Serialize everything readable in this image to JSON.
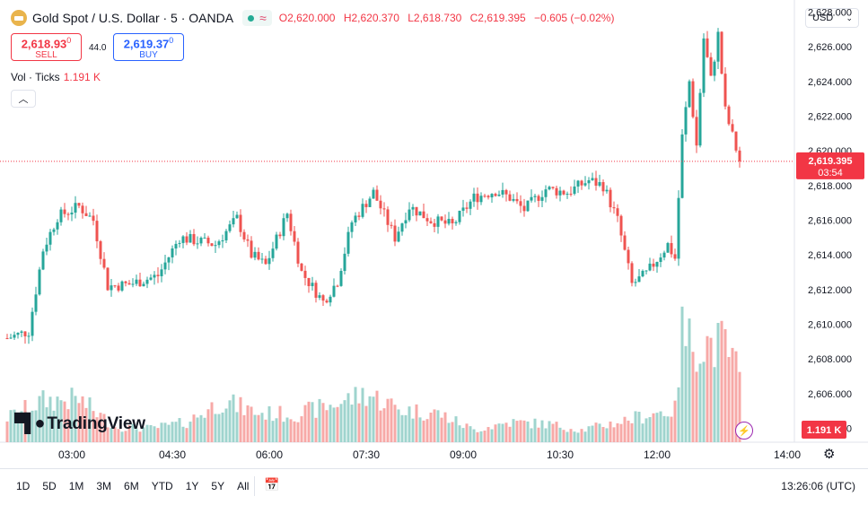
{
  "header": {
    "title": "Gold Spot / U.S. Dollar · 5 · OANDA",
    "open": "O2,620.000",
    "high": "H2,620.370",
    "low": "L2,618.730",
    "close": "C2,619.395",
    "change": "−0.605 (−0.02%)"
  },
  "trade": {
    "sell_price": "2,618.93",
    "sell_price_small": "0",
    "sell_label": "SELL",
    "spread": "44.0",
    "buy_price": "2,619.37",
    "buy_price_small": "0",
    "buy_label": "BUY"
  },
  "volume": {
    "label": "Vol · Ticks",
    "value": "1.191 K"
  },
  "currency": "USD",
  "logo_text": "TradingView",
  "bottom": {
    "ranges": [
      "1D",
      "5D",
      "1M",
      "3M",
      "6M",
      "YTD",
      "1Y",
      "5Y",
      "All"
    ],
    "clock": "13:26:06 (UTC)"
  },
  "colors": {
    "up": "#26a69a",
    "down": "#ef5350",
    "up_vol": "#9fd4ce",
    "down_vol": "#f7a9a7",
    "last_price": "#f23645"
  },
  "icons": {
    "calendar": "calendar-range-icon",
    "settings": "gear-icon",
    "alert": "flash-icon"
  },
  "chart_data": {
    "type": "candlestick",
    "y_ticks": [
      "2,604.000",
      "2,606.000",
      "2,608.000",
      "2,610.000",
      "2,612.000",
      "2,614.000",
      "2,616.000",
      "2,618.000",
      "2,620.000",
      "2,622.000",
      "2,624.000",
      "2,626.000",
      "2,628.000"
    ],
    "x_ticks": [
      "03:00",
      "04:30",
      "06:00",
      "07:30",
      "09:00",
      "10:30",
      "12:00",
      "14:00"
    ],
    "ylim": [
      2603.2,
      2628.7
    ],
    "last_price": {
      "value": 2619.395,
      "label": "2,619.395",
      "countdown": "03:54"
    },
    "last_volume_label": "1.191 K",
    "volume_max": 7.5,
    "anchors": [
      [
        0,
        2609.2
      ],
      [
        6,
        2609.6
      ],
      [
        10,
        2614.3
      ],
      [
        14,
        2616.2
      ],
      [
        20,
        2616.8
      ],
      [
        24,
        2616.0
      ],
      [
        28,
        2612.2
      ],
      [
        34,
        2612.3
      ],
      [
        42,
        2612.8
      ],
      [
        48,
        2615.0
      ],
      [
        58,
        2614.6
      ],
      [
        64,
        2616.1
      ],
      [
        68,
        2614.0
      ],
      [
        72,
        2613.4
      ],
      [
        78,
        2616.4
      ],
      [
        82,
        2613.0
      ],
      [
        88,
        2611.3
      ],
      [
        92,
        2612.5
      ],
      [
        96,
        2615.9
      ],
      [
        102,
        2617.6
      ],
      [
        108,
        2615.0
      ],
      [
        112,
        2616.8
      ],
      [
        118,
        2616.0
      ],
      [
        124,
        2615.7
      ],
      [
        130,
        2617.3
      ],
      [
        136,
        2617.7
      ],
      [
        140,
        2617.3
      ],
      [
        144,
        2616.6
      ],
      [
        150,
        2617.8
      ],
      [
        156,
        2617.6
      ],
      [
        162,
        2618.3
      ],
      [
        166,
        2618.0
      ],
      [
        170,
        2616.0
      ],
      [
        174,
        2612.3
      ],
      [
        178,
        2612.9
      ],
      [
        184,
        2614.6
      ],
      [
        186,
        2613.8
      ],
      [
        188,
        2620.8
      ],
      [
        190,
        2624.0
      ],
      [
        192,
        2620.3
      ],
      [
        194,
        2626.5
      ],
      [
        196,
        2624.1
      ],
      [
        198,
        2626.7
      ],
      [
        200,
        2622.3
      ],
      [
        204,
        2619.4
      ]
    ],
    "volume_anchors": [
      [
        0,
        1.6
      ],
      [
        10,
        2.7
      ],
      [
        20,
        2.8
      ],
      [
        30,
        1.0
      ],
      [
        40,
        0.9
      ],
      [
        50,
        1.3
      ],
      [
        60,
        2.7
      ],
      [
        70,
        1.9
      ],
      [
        80,
        1.8
      ],
      [
        90,
        2.4
      ],
      [
        100,
        3.2
      ],
      [
        110,
        2.1
      ],
      [
        120,
        1.9
      ],
      [
        130,
        0.8
      ],
      [
        140,
        1.3
      ],
      [
        150,
        1.2
      ],
      [
        160,
        0.8
      ],
      [
        170,
        1.3
      ],
      [
        180,
        1.9
      ],
      [
        186,
        2.1
      ],
      [
        188,
        7.2
      ],
      [
        190,
        6.6
      ],
      [
        196,
        6.4
      ],
      [
        200,
        6.3
      ],
      [
        204,
        4.4
      ]
    ]
  }
}
